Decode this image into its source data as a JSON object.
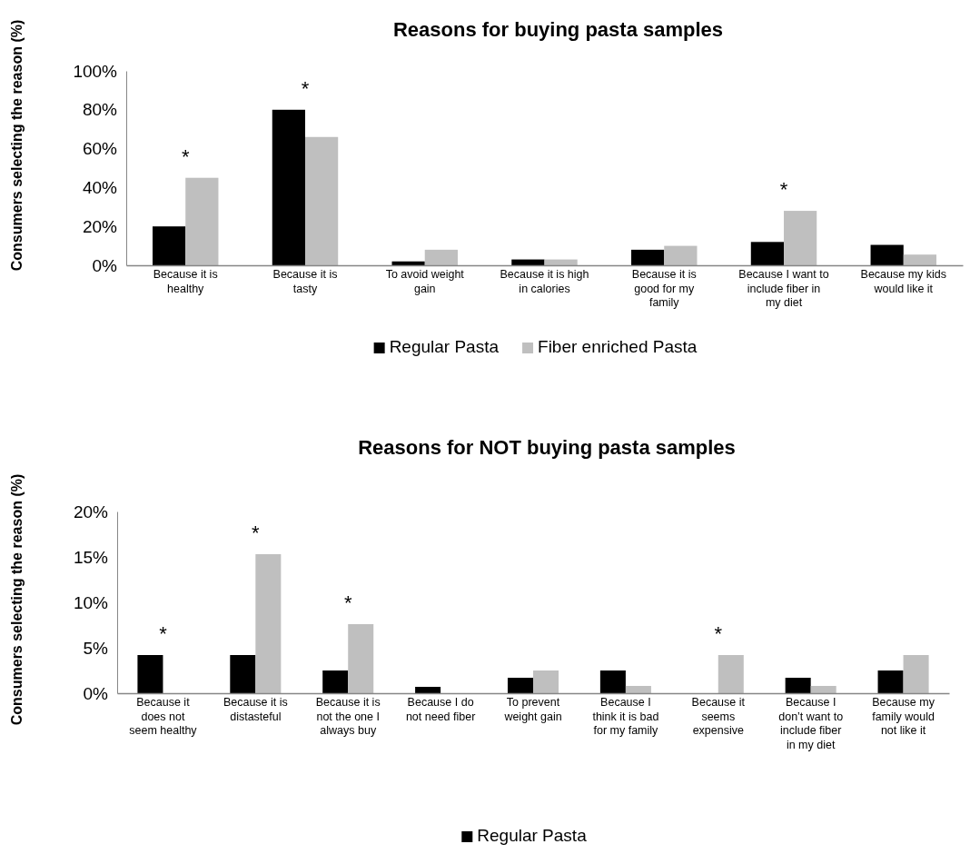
{
  "chart_data": [
    {
      "type": "bar",
      "title": "Reasons for buying pasta samples",
      "ylabel": "Consumers selecting the reason (%)",
      "categories": [
        "Because it is healthy",
        "Because it is tasty",
        "To avoid weight gain",
        "Because it is high in calories",
        "Because it is good for my family",
        "Because I want to include fiber in my diet",
        "Because my kids would like it"
      ],
      "series": [
        {
          "name": "Regular Pasta",
          "color": "#000000",
          "values": [
            20,
            80,
            2,
            3,
            8,
            12,
            10.5
          ]
        },
        {
          "name": "Fiber enriched Pasta",
          "color": "#bfbfbf",
          "values": [
            45,
            66,
            8,
            3,
            10,
            28,
            5.5
          ],
          "value_labels": [
            "*",
            "*",
            null,
            null,
            null,
            "*",
            null
          ]
        }
      ],
      "ylim": [
        0,
        100
      ],
      "yticks": [
        {
          "value": 0,
          "label": "0%"
        },
        {
          "value": 20,
          "label": "20%"
        },
        {
          "value": 40,
          "label": "40%"
        },
        {
          "value": 60,
          "label": "60%"
        },
        {
          "value": 80,
          "label": "80%"
        },
        {
          "value": 100,
          "label": "100%"
        }
      ],
      "legend": "bottom",
      "grid": false
    },
    {
      "type": "bar",
      "title": "Reasons for NOT buying pasta samples",
      "ylabel": "Consumers selecting the reason (%)",
      "categories": [
        "Because it does not seem healthy",
        "Because it is distasteful",
        "Because it is not the one I always buy",
        "Because I do not need fiber",
        "To prevent weight gain",
        "Because I think it is bad for my family",
        "Because it seems expensive",
        "Because I don’t want to include fiber in my diet",
        "Because my family would not like it"
      ],
      "series": [
        {
          "name": "Regular Pasta",
          "color": "#000000",
          "values": [
            4.2,
            4.2,
            2.5,
            0.7,
            1.7,
            2.5,
            0,
            1.7,
            2.5
          ]
        },
        {
          "color": "#bfbfbf",
          "values": [
            0,
            15.3,
            7.6,
            0,
            2.5,
            0.8,
            4.2,
            0.8,
            4.2
          ],
          "value_labels": [
            "*",
            "*",
            "*",
            null,
            null,
            null,
            "*",
            null,
            null
          ]
        }
      ],
      "ylim": [
        0,
        20
      ],
      "yticks": [
        {
          "value": 0,
          "label": "0%"
        },
        {
          "value": 5,
          "label": "5%"
        },
        {
          "value": 10,
          "label": "10%"
        },
        {
          "value": 15,
          "label": "15%"
        },
        {
          "value": 20,
          "label": "20%"
        }
      ],
      "legend": "bottom",
      "grid": false
    }
  ]
}
